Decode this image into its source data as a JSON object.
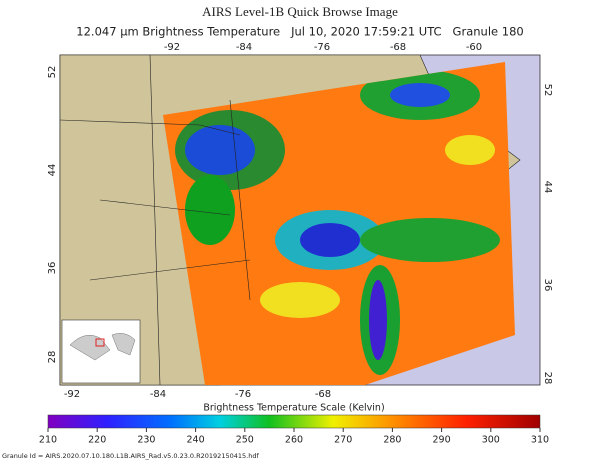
{
  "title": "AIRS Level-1B Quick Browse Image",
  "subtitle": "12.047 μm Brightness Temperature   Jul 10, 2020 17:59:21 UTC   Granule 180",
  "map": {
    "top_lon_labels": [
      "-92",
      "-84",
      "-76",
      "-68",
      "-60"
    ],
    "bottom_lon_labels": [
      "-92",
      "-84",
      "-76",
      "-68"
    ],
    "left_lat_labels": [
      "52",
      "44",
      "36",
      "28"
    ],
    "right_lat_labels": [
      "52",
      "44",
      "36",
      "28"
    ]
  },
  "colorbar": {
    "title": "Brightness Temperature Scale (Kelvin)",
    "ticks": [
      210,
      220,
      230,
      240,
      250,
      260,
      270,
      280,
      290,
      300,
      310
    ]
  },
  "footer": "Granule Id = AIRS.2020.07.10.180.L1B.AIRS_Rad.v5.0.23.0.R20192150415.hdf"
}
